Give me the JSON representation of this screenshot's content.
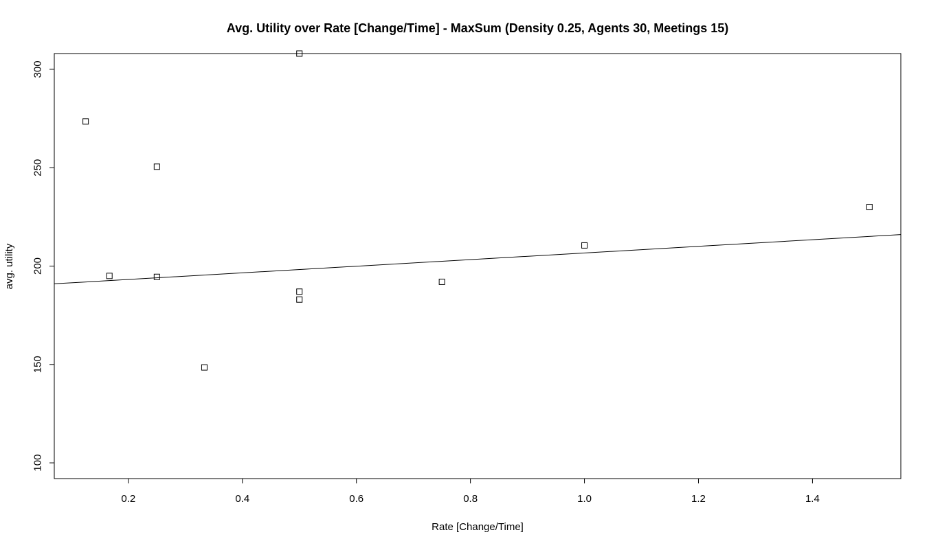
{
  "chart_data": {
    "type": "scatter",
    "title": "Avg. Utility over Rate [Change/Time] - MaxSum (Density 0.25, Agents 30, Meetings 15)",
    "xlabel": "Rate [Change/Time]",
    "ylabel": "avg. utility",
    "xlim": [
      0.07,
      1.555
    ],
    "ylim": [
      92,
      308
    ],
    "xticks": [
      0.2,
      0.4,
      0.6,
      0.8,
      1.0,
      1.2,
      1.4
    ],
    "xtick_labels": [
      "0.2",
      "0.4",
      "0.6",
      "0.8",
      "1.0",
      "1.2",
      "1.4"
    ],
    "yticks": [
      100,
      150,
      200,
      250,
      300
    ],
    "ytick_labels": [
      "100",
      "150",
      "200",
      "250",
      "300"
    ],
    "grid": false,
    "marker": "open-square",
    "points": [
      {
        "x": 0.125,
        "y": 273.5
      },
      {
        "x": 0.1667,
        "y": 195.0
      },
      {
        "x": 0.25,
        "y": 250.5
      },
      {
        "x": 0.25,
        "y": 194.5
      },
      {
        "x": 0.3333,
        "y": 148.5
      },
      {
        "x": 0.5,
        "y": 308.0
      },
      {
        "x": 0.5,
        "y": 187.0
      },
      {
        "x": 0.5,
        "y": 183.0
      },
      {
        "x": 0.75,
        "y": 192.0
      },
      {
        "x": 1.0,
        "y": 210.5
      },
      {
        "x": 1.5,
        "y": 230.0
      }
    ],
    "fit_line": {
      "type": "linear",
      "x": [
        0.07,
        1.555
      ],
      "y": [
        191.0,
        216.0
      ]
    }
  }
}
